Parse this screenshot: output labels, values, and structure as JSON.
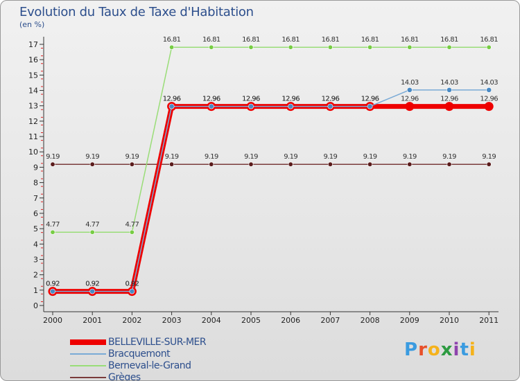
{
  "title": "Evolution du Taux de Taxe d'Habitation",
  "subtitle": "(en %)",
  "brand": {
    "letters": [
      "P",
      "r",
      "o",
      "x",
      "i",
      "t",
      "i"
    ],
    "colors": [
      "#3a9be0",
      "#e8502a",
      "#f5b21b",
      "#2d9b41",
      "#8e44ad",
      "#3a9be0",
      "#f5b21b"
    ]
  },
  "chart_data": {
    "type": "line",
    "title": "Evolution du Taux de Taxe d'Habitation",
    "ylabel": "(en %)",
    "xlabel": "",
    "x": [
      "2000",
      "2001",
      "2002",
      "2003",
      "2004",
      "2005",
      "2006",
      "2007",
      "2008",
      "2009",
      "2010",
      "2011"
    ],
    "ylim": [
      0,
      17
    ],
    "yticks": [
      "0",
      "1",
      "2",
      "3",
      "4",
      "5",
      "6",
      "7",
      "8",
      "9",
      "10",
      "11",
      "12",
      "13",
      "14",
      "15",
      "16",
      "17"
    ],
    "grid": false,
    "legend_position": "bottom-left",
    "series": [
      {
        "name": "Grèges",
        "color": "#7a3b3b",
        "dot_color": "#5a1b1b",
        "values": [
          9.19,
          9.19,
          9.19,
          9.19,
          9.19,
          9.19,
          9.19,
          9.19,
          9.19,
          9.19,
          9.19,
          9.19
        ],
        "labels": [
          "9.19",
          "9.19",
          "9.19",
          "9.19",
          "9.19",
          "9.19",
          "9.19",
          "9.19",
          "9.19",
          "9.19",
          "9.19",
          "9.19"
        ]
      },
      {
        "name": "Berneval-le-Grand",
        "color": "#99dd77",
        "dot_color": "#77cc44",
        "values": [
          4.77,
          4.77,
          4.77,
          16.81,
          16.81,
          16.81,
          16.81,
          16.81,
          16.81,
          16.81,
          16.81,
          16.81
        ],
        "labels": [
          "4.77",
          "4.77",
          "4.77",
          "16.81",
          "16.81",
          "16.81",
          "16.81",
          "16.81",
          "16.81",
          "16.81",
          "16.81",
          "16.81"
        ]
      },
      {
        "name": "BELLEVILLE-SUR-MER",
        "color": "#ee0000",
        "dot_color": "#ee0000",
        "values": [
          0.92,
          0.92,
          0.92,
          12.96,
          12.96,
          12.96,
          12.96,
          12.96,
          12.96,
          12.96,
          12.96,
          12.96
        ],
        "labels": [
          "0.92",
          "0.92",
          "0.92",
          "12.96",
          "12.96",
          "12.96",
          "12.96",
          "12.96",
          "12.96",
          "12.96",
          "12.96",
          "12.96"
        ]
      },
      {
        "name": "Bracquemont",
        "color": "#7aaad6",
        "dot_color": "#4a8ac4",
        "values": [
          0.92,
          0.92,
          0.92,
          12.96,
          12.96,
          12.96,
          12.96,
          12.96,
          12.96,
          14.03,
          14.03,
          14.03
        ],
        "labels": [
          "0.92",
          "0.92",
          "0.92",
          "12.96",
          "12.96",
          "12.96",
          "12.96",
          "12.96",
          "12.96",
          "14.03",
          "14.03",
          "14.03"
        ]
      }
    ],
    "legend": [
      {
        "name": "BELLEVILLE-SUR-MER",
        "color": "#ee0000"
      },
      {
        "name": "Bracquemont",
        "color": "#7aaad6"
      },
      {
        "name": "Berneval-le-Grand",
        "color": "#99dd77"
      },
      {
        "name": "Grèges",
        "color": "#7a3b3b"
      }
    ]
  }
}
